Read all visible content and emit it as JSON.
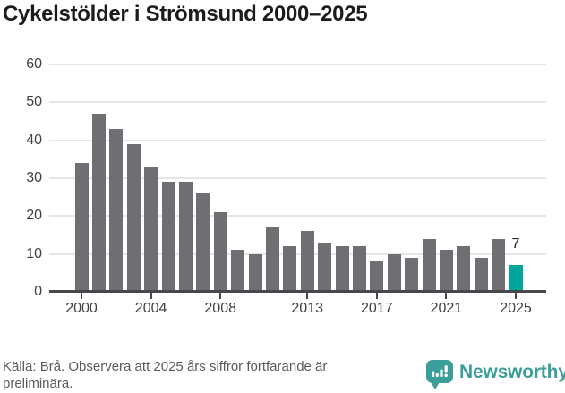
{
  "title": "Cykelstölder i Strömsund 2000–2025",
  "chart_data": {
    "type": "bar",
    "x": [
      2000,
      2001,
      2002,
      2003,
      2004,
      2005,
      2006,
      2007,
      2008,
      2009,
      2010,
      2011,
      2012,
      2013,
      2014,
      2015,
      2016,
      2017,
      2018,
      2019,
      2020,
      2021,
      2022,
      2023,
      2024,
      2025
    ],
    "values": [
      34,
      47,
      43,
      39,
      33,
      29,
      29,
      26,
      21,
      11,
      10,
      17,
      12,
      16,
      13,
      12,
      12,
      8,
      10,
      9,
      14,
      11,
      12,
      9,
      14,
      7
    ],
    "title": "Cykelstölder i Strömsund 2000–2025",
    "xlabel": "",
    "ylabel": "",
    "ylim": [
      0,
      60
    ],
    "yticks": [
      0,
      10,
      20,
      30,
      40,
      50,
      60
    ],
    "xticks": [
      2000,
      2004,
      2008,
      2013,
      2017,
      2021,
      2025
    ],
    "grid": true,
    "legend_position": "none",
    "bar_color": "#6e6e73",
    "highlight_year": 2025,
    "highlight_color": "#00a69c",
    "value_labels": [
      {
        "year": 2025,
        "text": "7"
      }
    ]
  },
  "footer": {
    "source_note": "Källa: Brå. Observera att 2025 års siffror fortfarande är preliminära."
  },
  "branding": {
    "logo_text": "Newsworthy",
    "logo_icon": "bar-chart-speech-bubble-icon",
    "logo_color": "#3b9e99"
  }
}
